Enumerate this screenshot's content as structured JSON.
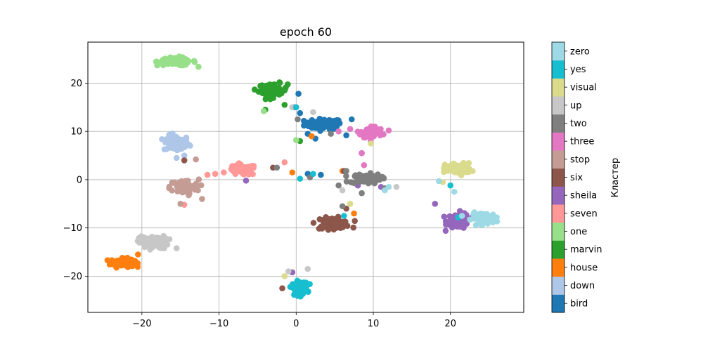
{
  "chart_data": {
    "type": "scatter",
    "title": "epoch 60",
    "xlabel": "",
    "ylabel": "",
    "xlim": [
      -27,
      29.5
    ],
    "ylim": [
      -27.5,
      28.5
    ],
    "xticks": [
      -20,
      -10,
      0,
      10,
      20
    ],
    "yticks": [
      -20,
      -10,
      0,
      10,
      20
    ],
    "grid": true,
    "colorbar": {
      "label": "Кластер",
      "labels": [
        "bird",
        "down",
        "house",
        "marvin",
        "one",
        "seven",
        "sheila",
        "six",
        "stop",
        "three",
        "two",
        "up",
        "visual",
        "yes",
        "zero"
      ],
      "colors": [
        "#1f77b4",
        "#aec7e8",
        "#ff7f0e",
        "#2ca02c",
        "#98df8a",
        "#ff9896",
        "#9467bd",
        "#8c564b",
        "#c49c94",
        "#e377c2",
        "#7f7f7f",
        "#c7c7c7",
        "#dbdb8d",
        "#17becf",
        "#9edae5"
      ]
    },
    "series": [
      {
        "name": "bird",
        "color": "#1f77b4",
        "center": [
          3.5,
          11.5
        ],
        "spread": [
          2.2,
          1.0
        ],
        "n": 70,
        "outliers": [
          [
            0.5,
            13.8
          ],
          [
            1.5,
            9.5
          ],
          [
            6.5,
            9.2
          ],
          [
            2.5,
            8.5
          ],
          [
            0.3,
            17.8
          ],
          [
            -0.3,
            15.0
          ],
          [
            3.2,
            1.0
          ],
          [
            1.5,
            1.2
          ],
          [
            7.2,
            12.5
          ]
        ]
      },
      {
        "name": "down",
        "color": "#aec7e8",
        "center": [
          -15.5,
          7.5
        ],
        "spread": [
          1.5,
          1.5
        ],
        "n": 75,
        "outliers": [
          [
            -14.5,
            5.0
          ],
          [
            -15.5,
            4.5
          ]
        ]
      },
      {
        "name": "house",
        "color": "#ff7f0e",
        "center": [
          -22.5,
          -17.2
        ],
        "spread": [
          1.4,
          0.8
        ],
        "n": 80,
        "outliers": [
          [
            -20.5,
            -15.5
          ],
          [
            0.5,
            -22.5
          ],
          [
            -0.5,
            1.5
          ],
          [
            2.0,
            9.0
          ],
          [
            6.0,
            1.8
          ],
          [
            7.5,
            -7.0
          ]
        ]
      },
      {
        "name": "marvin",
        "color": "#2ca02c",
        "center": [
          -3.0,
          18.5
        ],
        "spread": [
          1.7,
          1.3
        ],
        "n": 70,
        "outliers": [
          [
            -4.0,
            14.5
          ],
          [
            -1.5,
            15.5
          ],
          [
            0.5,
            8.0
          ]
        ]
      },
      {
        "name": "one",
        "color": "#98df8a",
        "center": [
          -15.5,
          24.5
        ],
        "spread": [
          2.3,
          0.8
        ],
        "n": 70,
        "outliers": [
          [
            -4.2,
            14.2
          ],
          [
            0.0,
            8.2
          ]
        ]
      },
      {
        "name": "seven",
        "color": "#ff9896",
        "center": [
          -7.0,
          2.0
        ],
        "spread": [
          1.7,
          1.0
        ],
        "n": 60,
        "outliers": [
          [
            -10.5,
            1.2
          ],
          [
            -11.5,
            1.0
          ],
          [
            -1.5,
            3.6
          ],
          [
            -14.5,
            -5.2
          ]
        ]
      },
      {
        "name": "sheila",
        "color": "#9467bd",
        "center": [
          21.0,
          -8.5
        ],
        "spread": [
          1.3,
          1.5
        ],
        "n": 65,
        "outliers": [
          [
            -6.5,
            -0.2
          ],
          [
            -0.5,
            -19.2
          ],
          [
            8.5,
            5.5
          ],
          [
            18.0,
            -5.0
          ],
          [
            11.0,
            -1.5
          ],
          [
            8.0,
            -1.2
          ]
        ]
      },
      {
        "name": "six",
        "color": "#8c564b",
        "center": [
          4.8,
          -9.0
        ],
        "spread": [
          2.0,
          1.0
        ],
        "n": 70,
        "outliers": [
          [
            6.5,
            -6.0
          ],
          [
            -1.8,
            -22.5
          ],
          [
            -3.0,
            2.5
          ],
          [
            -14.5,
            4.0
          ],
          [
            6.2,
            1.8
          ]
        ]
      },
      {
        "name": "stop",
        "color": "#c49c94",
        "center": [
          -14.5,
          -1.5
        ],
        "spread": [
          1.7,
          1.4
        ],
        "n": 80,
        "outliers": [
          [
            -13.0,
            4.2
          ],
          [
            -15.0,
            -5.0
          ],
          [
            -12.2,
            -4.0
          ]
        ]
      },
      {
        "name": "three",
        "color": "#e377c2",
        "center": [
          9.8,
          9.8
        ],
        "spread": [
          1.3,
          1.2
        ],
        "n": 60,
        "outliers": [
          [
            8.5,
            5.5
          ],
          [
            8.8,
            3.0
          ],
          [
            12.0,
            10.2
          ],
          [
            5.5,
            10.0
          ],
          [
            7.0,
            10.5
          ]
        ]
      },
      {
        "name": "two",
        "color": "#7f7f7f",
        "center": [
          9.0,
          0.2
        ],
        "spread": [
          1.8,
          0.9
        ],
        "n": 75,
        "outliers": [
          [
            4.5,
            9.5
          ],
          [
            5.5,
            -1.2
          ],
          [
            6.5,
            1.8
          ],
          [
            8.5,
            -2.8
          ],
          [
            6.0,
            -5.5
          ],
          [
            0.2,
            12.5
          ],
          [
            -2.5,
            2.5
          ],
          [
            1.8,
            0.5
          ],
          [
            11.5,
            -1.8
          ]
        ]
      },
      {
        "name": "up",
        "color": "#c7c7c7",
        "center": [
          -18.5,
          -13.0
        ],
        "spread": [
          1.7,
          1.2
        ],
        "n": 75,
        "outliers": [
          [
            -15.5,
            -14.2
          ],
          [
            1.5,
            -18.5
          ],
          [
            2.2,
            14.0
          ],
          [
            -0.5,
            15.0
          ],
          [
            6.0,
            -2.2
          ],
          [
            13.0,
            -1.5
          ],
          [
            -1.0,
            -19.0
          ]
        ]
      },
      {
        "name": "visual",
        "color": "#dbdb8d",
        "center": [
          21.0,
          2.3
        ],
        "spread": [
          1.5,
          1.0
        ],
        "n": 75,
        "outliers": [
          [
            -1.5,
            -20.0
          ],
          [
            7.0,
            -5.0
          ],
          [
            9.7,
            7.5
          ],
          [
            19.0,
            -0.5
          ]
        ]
      },
      {
        "name": "yes",
        "color": "#17becf",
        "center": [
          0.5,
          -22.5
        ],
        "spread": [
          0.9,
          1.3
        ],
        "n": 65,
        "outliers": [
          [
            0.5,
            0.2
          ],
          [
            2.2,
            1.2
          ],
          [
            6.2,
            -7.5
          ],
          [
            20.0,
            -1.2
          ],
          [
            21.0,
            -7.8
          ],
          [
            0.0,
            15.0
          ]
        ]
      },
      {
        "name": "zero",
        "color": "#9edae5",
        "center": [
          24.5,
          -8.0
        ],
        "spread": [
          1.6,
          1.0
        ],
        "n": 65,
        "outliers": [
          [
            12.0,
            -1.5
          ],
          [
            11.5,
            -2.2
          ],
          [
            21.5,
            -7.5
          ],
          [
            18.5,
            -0.3
          ],
          [
            20.5,
            -2.5
          ]
        ]
      }
    ]
  }
}
